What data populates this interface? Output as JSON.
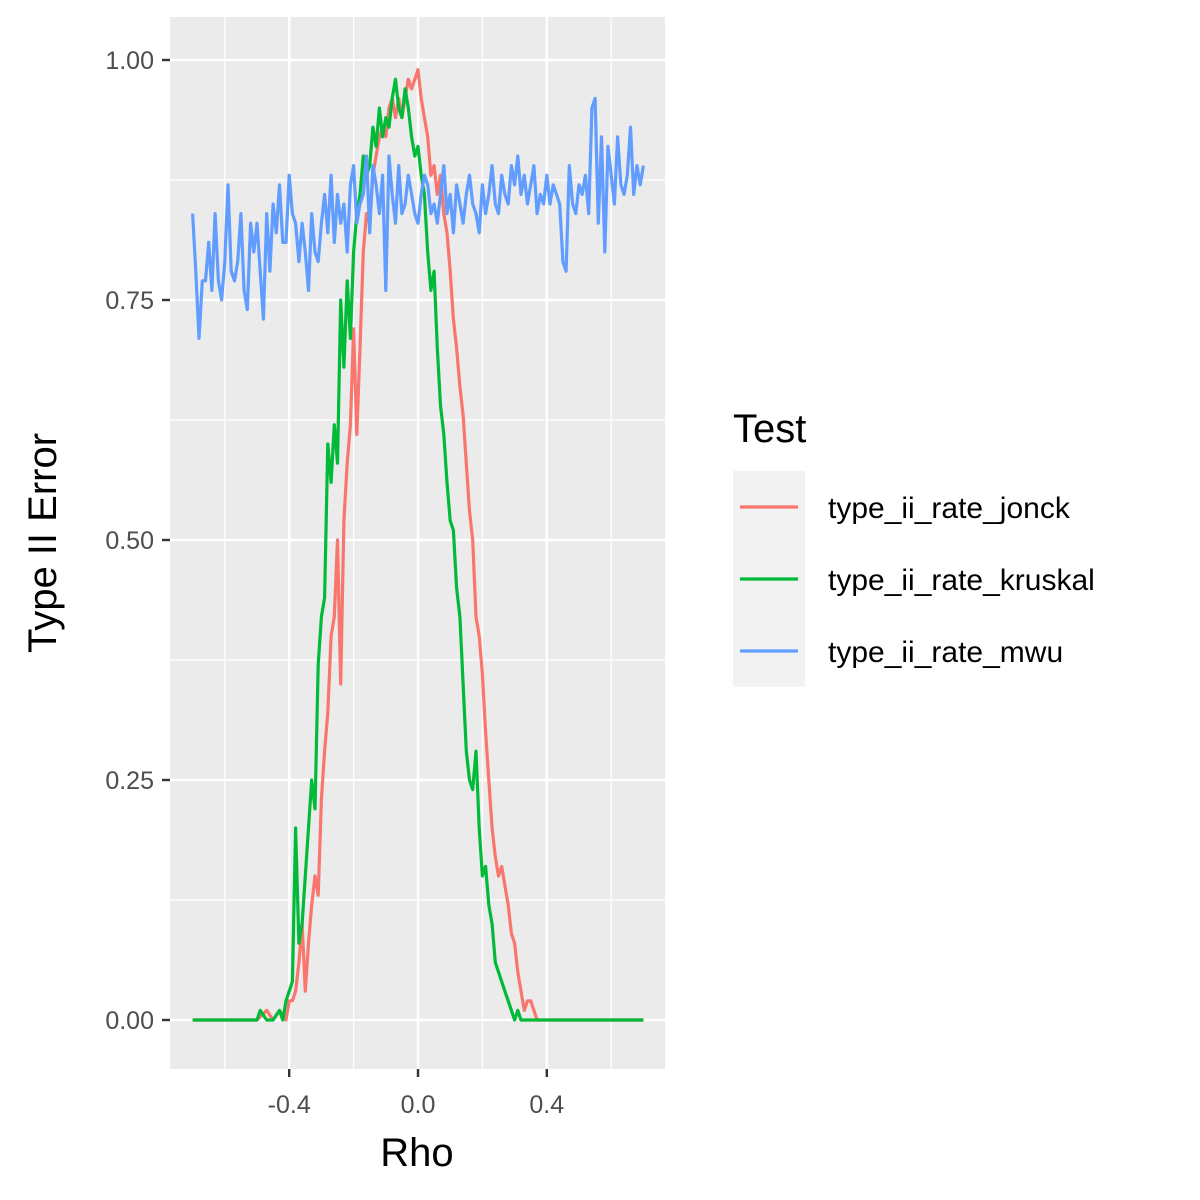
{
  "chart_data": {
    "type": "line",
    "title": "",
    "xlabel": "Rho",
    "ylabel": "Type II Error",
    "xlim": [
      -0.7,
      0.7
    ],
    "ylim": [
      0,
      1
    ],
    "x_ticks": [
      -0.4,
      0.0,
      0.4
    ],
    "x_tick_labels": [
      "-0.4",
      "0.0",
      "0.4"
    ],
    "y_ticks": [
      0,
      0.25,
      0.5,
      0.75,
      1.0
    ],
    "y_tick_labels": [
      "0.00",
      "0.25",
      "0.50",
      "0.75",
      "1.00"
    ],
    "grid": true,
    "legend": {
      "title": "Test",
      "position": "right"
    },
    "series": [
      {
        "name": "type_ii_rate_jonck",
        "color": "#F8766D",
        "x": [
          -0.7,
          -0.5,
          -0.47,
          -0.45,
          -0.43,
          -0.41,
          -0.4,
          -0.39,
          -0.38,
          -0.37,
          -0.36,
          -0.35,
          -0.34,
          -0.33,
          -0.32,
          -0.31,
          -0.3,
          -0.29,
          -0.28,
          -0.27,
          -0.26,
          -0.25,
          -0.24,
          -0.23,
          -0.22,
          -0.21,
          -0.2,
          -0.19,
          -0.18,
          -0.17,
          -0.16,
          -0.15,
          -0.14,
          -0.13,
          -0.12,
          -0.11,
          -0.1,
          -0.09,
          -0.08,
          -0.07,
          -0.06,
          -0.05,
          -0.04,
          -0.03,
          -0.02,
          -0.01,
          0.0,
          0.01,
          0.02,
          0.03,
          0.04,
          0.05,
          0.06,
          0.07,
          0.08,
          0.09,
          0.1,
          0.11,
          0.12,
          0.13,
          0.14,
          0.15,
          0.16,
          0.17,
          0.18,
          0.19,
          0.2,
          0.21,
          0.22,
          0.23,
          0.24,
          0.25,
          0.26,
          0.27,
          0.28,
          0.29,
          0.3,
          0.31,
          0.32,
          0.33,
          0.34,
          0.35,
          0.36,
          0.37,
          0.38,
          0.39,
          0.4,
          0.7
        ],
        "values": [
          0.0,
          0.0,
          0.01,
          0.0,
          0.01,
          0.0,
          0.02,
          0.02,
          0.03,
          0.06,
          0.1,
          0.03,
          0.08,
          0.12,
          0.15,
          0.13,
          0.23,
          0.28,
          0.32,
          0.4,
          0.42,
          0.5,
          0.35,
          0.52,
          0.58,
          0.62,
          0.72,
          0.61,
          0.7,
          0.8,
          0.84,
          0.83,
          0.88,
          0.9,
          0.92,
          0.93,
          0.92,
          0.95,
          0.96,
          0.94,
          0.96,
          0.94,
          0.96,
          0.98,
          0.97,
          0.98,
          0.99,
          0.96,
          0.94,
          0.92,
          0.88,
          0.89,
          0.86,
          0.88,
          0.84,
          0.82,
          0.78,
          0.73,
          0.7,
          0.66,
          0.63,
          0.58,
          0.53,
          0.5,
          0.42,
          0.4,
          0.36,
          0.3,
          0.25,
          0.2,
          0.17,
          0.15,
          0.16,
          0.14,
          0.12,
          0.09,
          0.08,
          0.05,
          0.03,
          0.01,
          0.02,
          0.02,
          0.01,
          0.0,
          0.0,
          0.0,
          0.0,
          0.0
        ]
      },
      {
        "name": "type_ii_rate_kruskal",
        "color": "#00BA38",
        "x": [
          -0.7,
          -0.5,
          -0.49,
          -0.47,
          -0.45,
          -0.43,
          -0.42,
          -0.41,
          -0.4,
          -0.39,
          -0.38,
          -0.37,
          -0.36,
          -0.35,
          -0.34,
          -0.33,
          -0.32,
          -0.31,
          -0.3,
          -0.29,
          -0.28,
          -0.27,
          -0.26,
          -0.25,
          -0.24,
          -0.23,
          -0.22,
          -0.21,
          -0.2,
          -0.19,
          -0.18,
          -0.17,
          -0.16,
          -0.15,
          -0.14,
          -0.13,
          -0.12,
          -0.11,
          -0.1,
          -0.09,
          -0.08,
          -0.07,
          -0.06,
          -0.05,
          -0.04,
          -0.03,
          -0.02,
          -0.01,
          0.0,
          0.01,
          0.02,
          0.03,
          0.04,
          0.05,
          0.06,
          0.07,
          0.08,
          0.09,
          0.1,
          0.11,
          0.12,
          0.13,
          0.14,
          0.15,
          0.16,
          0.17,
          0.18,
          0.19,
          0.2,
          0.21,
          0.22,
          0.23,
          0.24,
          0.25,
          0.26,
          0.27,
          0.28,
          0.29,
          0.3,
          0.31,
          0.32,
          0.33,
          0.34,
          0.35,
          0.36,
          0.37,
          0.38,
          0.39,
          0.4,
          0.41,
          0.42,
          0.43,
          0.44,
          0.45,
          0.7
        ],
        "values": [
          0.0,
          0.0,
          0.01,
          0.0,
          0.0,
          0.01,
          0.0,
          0.02,
          0.03,
          0.04,
          0.2,
          0.08,
          0.1,
          0.15,
          0.2,
          0.25,
          0.22,
          0.37,
          0.42,
          0.44,
          0.6,
          0.56,
          0.62,
          0.58,
          0.75,
          0.68,
          0.77,
          0.71,
          0.8,
          0.84,
          0.86,
          0.9,
          0.88,
          0.89,
          0.93,
          0.91,
          0.95,
          0.92,
          0.94,
          0.93,
          0.96,
          0.98,
          0.95,
          0.94,
          0.97,
          0.95,
          0.92,
          0.9,
          0.91,
          0.88,
          0.86,
          0.8,
          0.76,
          0.78,
          0.7,
          0.64,
          0.61,
          0.56,
          0.52,
          0.51,
          0.45,
          0.42,
          0.35,
          0.28,
          0.25,
          0.24,
          0.28,
          0.2,
          0.15,
          0.16,
          0.12,
          0.1,
          0.06,
          0.05,
          0.04,
          0.03,
          0.02,
          0.01,
          0.0,
          0.01,
          0.0,
          0.0,
          0.0,
          0.0,
          0.0,
          0.0,
          0.0,
          0.0,
          0.0,
          0.0,
          0.0,
          0.0,
          0.0,
          0.0,
          0.0
        ]
      },
      {
        "name": "type_ii_rate_mwu",
        "color": "#619CFF",
        "x": [
          -0.7,
          -0.69,
          -0.68,
          -0.67,
          -0.66,
          -0.65,
          -0.64,
          -0.63,
          -0.62,
          -0.61,
          -0.6,
          -0.59,
          -0.58,
          -0.57,
          -0.56,
          -0.55,
          -0.54,
          -0.53,
          -0.52,
          -0.51,
          -0.5,
          -0.49,
          -0.48,
          -0.47,
          -0.46,
          -0.45,
          -0.44,
          -0.43,
          -0.42,
          -0.41,
          -0.4,
          -0.39,
          -0.38,
          -0.37,
          -0.36,
          -0.35,
          -0.34,
          -0.33,
          -0.32,
          -0.31,
          -0.3,
          -0.29,
          -0.28,
          -0.27,
          -0.26,
          -0.25,
          -0.24,
          -0.23,
          -0.22,
          -0.21,
          -0.2,
          -0.19,
          -0.18,
          -0.17,
          -0.16,
          -0.15,
          -0.14,
          -0.13,
          -0.12,
          -0.11,
          -0.1,
          -0.09,
          -0.08,
          -0.07,
          -0.06,
          -0.05,
          -0.04,
          -0.03,
          -0.02,
          -0.01,
          0.0,
          0.01,
          0.02,
          0.03,
          0.04,
          0.05,
          0.06,
          0.07,
          0.08,
          0.09,
          0.1,
          0.11,
          0.12,
          0.13,
          0.14,
          0.15,
          0.16,
          0.17,
          0.18,
          0.19,
          0.2,
          0.21,
          0.22,
          0.23,
          0.24,
          0.25,
          0.26,
          0.27,
          0.28,
          0.29,
          0.3,
          0.31,
          0.32,
          0.33,
          0.34,
          0.35,
          0.36,
          0.37,
          0.38,
          0.39,
          0.4,
          0.41,
          0.42,
          0.43,
          0.44,
          0.45,
          0.46,
          0.47,
          0.48,
          0.49,
          0.5,
          0.51,
          0.52,
          0.53,
          0.54,
          0.55,
          0.56,
          0.57,
          0.58,
          0.59,
          0.6,
          0.61,
          0.62,
          0.63,
          0.64,
          0.65,
          0.66,
          0.67,
          0.68,
          0.69,
          0.7
        ],
        "values": [
          0.84,
          0.78,
          0.71,
          0.77,
          0.77,
          0.81,
          0.76,
          0.84,
          0.77,
          0.75,
          0.79,
          0.87,
          0.78,
          0.77,
          0.79,
          0.84,
          0.76,
          0.74,
          0.83,
          0.8,
          0.83,
          0.78,
          0.73,
          0.84,
          0.78,
          0.85,
          0.82,
          0.87,
          0.81,
          0.81,
          0.88,
          0.84,
          0.83,
          0.79,
          0.83,
          0.8,
          0.76,
          0.84,
          0.8,
          0.79,
          0.83,
          0.86,
          0.82,
          0.88,
          0.81,
          0.86,
          0.83,
          0.85,
          0.8,
          0.87,
          0.89,
          0.83,
          0.85,
          0.86,
          0.9,
          0.82,
          0.89,
          0.87,
          0.84,
          0.88,
          0.76,
          0.9,
          0.86,
          0.83,
          0.89,
          0.84,
          0.85,
          0.88,
          0.86,
          0.84,
          0.83,
          0.86,
          0.88,
          0.87,
          0.84,
          0.85,
          0.83,
          0.86,
          0.89,
          0.84,
          0.86,
          0.82,
          0.87,
          0.85,
          0.83,
          0.86,
          0.88,
          0.85,
          0.84,
          0.82,
          0.87,
          0.84,
          0.86,
          0.89,
          0.85,
          0.84,
          0.88,
          0.86,
          0.85,
          0.89,
          0.87,
          0.9,
          0.86,
          0.88,
          0.85,
          0.87,
          0.89,
          0.84,
          0.86,
          0.85,
          0.88,
          0.85,
          0.87,
          0.86,
          0.85,
          0.79,
          0.78,
          0.89,
          0.85,
          0.84,
          0.87,
          0.86,
          0.88,
          0.84,
          0.95,
          0.96,
          0.83,
          0.92,
          0.8,
          0.91,
          0.88,
          0.85,
          0.92,
          0.87,
          0.86,
          0.88,
          0.93,
          0.86,
          0.89,
          0.87,
          0.89
        ]
      }
    ]
  }
}
